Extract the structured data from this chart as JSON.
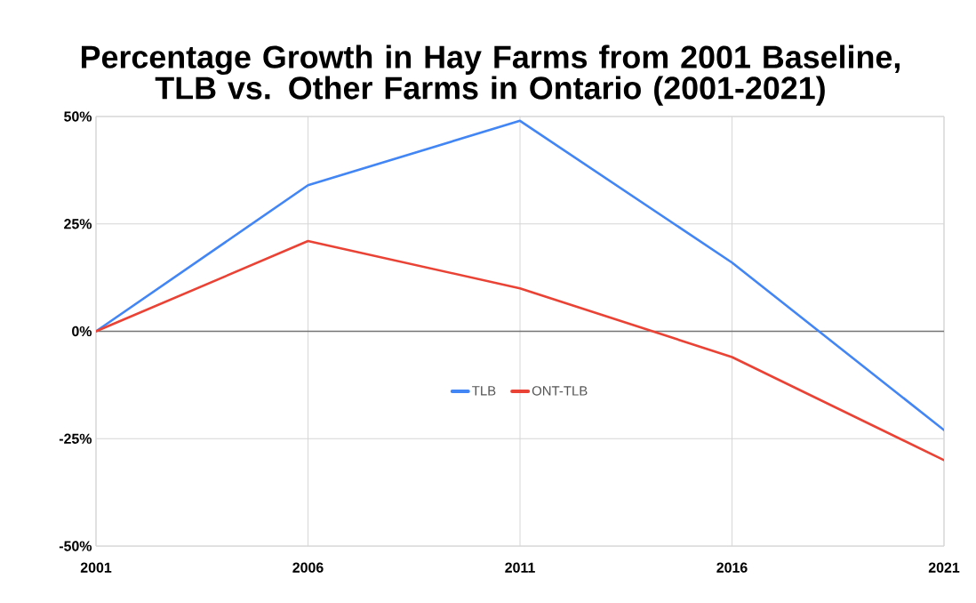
{
  "chart_data": {
    "type": "line",
    "title": "Percentage Growth in Hay Farms from 2001 Baseline, TLB vs. Other Farms in Ontario (2001-2021)",
    "x": [
      2001,
      2006,
      2011,
      2016,
      2021
    ],
    "series": [
      {
        "name": "TLB",
        "color": "#4285f4",
        "values": [
          0,
          34,
          49,
          16,
          -23
        ]
      },
      {
        "name": "ONT-TLB",
        "color": "#ea4335",
        "values": [
          0,
          21,
          10,
          -6,
          -30
        ]
      }
    ],
    "xlim": [
      2001,
      2021
    ],
    "xticks": [
      2001,
      2006,
      2011,
      2016,
      2021
    ],
    "ylim": [
      -50,
      50
    ],
    "yticks": [
      {
        "value": -50,
        "label": "-50%"
      },
      {
        "value": -25,
        "label": "-25%"
      },
      {
        "value": 0,
        "label": "0%"
      },
      {
        "value": 25,
        "label": "25%"
      },
      {
        "value": 50,
        "label": "50%"
      }
    ],
    "grid": true,
    "legend": "center",
    "ref_lines": [
      {
        "axis": "y",
        "value": 0,
        "color": "#757575"
      }
    ]
  }
}
